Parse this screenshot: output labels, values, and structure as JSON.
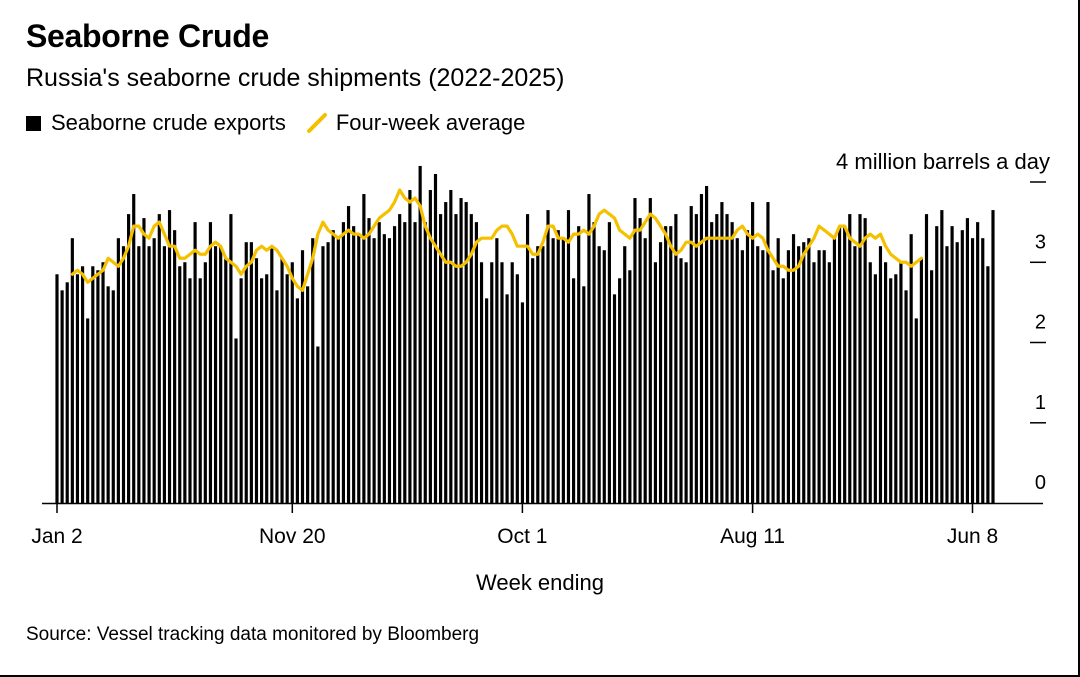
{
  "title": "Seaborne Crude",
  "subtitle": "Russia's seaborne crude shipments (2022-2025)",
  "legend": {
    "bars_label": "Seaborne crude exports",
    "line_label": "Four-week average"
  },
  "source": "Source: Vessel tracking data monitored by Bloomberg",
  "colors": {
    "bars": "#000000",
    "line": "#f5c000",
    "axis": "#000000"
  },
  "chart_data": {
    "type": "bar",
    "title": "Seaborne Crude",
    "subtitle": "Russia's seaborne crude shipments (2022-2025)",
    "xlabel": "Week ending",
    "ylabel": "4 million barrels a day",
    "ylim": [
      0,
      4
    ],
    "yticks": [
      0,
      1,
      2,
      3
    ],
    "xtick_labels": [
      {
        "label": "Jan 2",
        "index": 0
      },
      {
        "label": "Nov 20",
        "index": 46
      },
      {
        "label": "Oct 1",
        "index": 91
      },
      {
        "label": "Aug 11",
        "index": 136
      },
      {
        "label": "Jun 8",
        "index": 179
      }
    ],
    "legend_position": "top-left",
    "series": [
      {
        "name": "Seaborne crude exports",
        "type": "bar",
        "values": [
          2.85,
          2.65,
          2.75,
          3.3,
          2.85,
          2.95,
          2.3,
          2.95,
          2.9,
          3.0,
          2.7,
          2.65,
          3.3,
          3.2,
          3.6,
          3.85,
          3.2,
          3.55,
          3.2,
          3.3,
          3.6,
          3.2,
          3.65,
          3.4,
          2.95,
          3.0,
          2.8,
          3.5,
          2.8,
          3.0,
          3.5,
          3.2,
          3.2,
          3.05,
          3.6,
          2.05,
          2.8,
          3.25,
          3.25,
          3.05,
          2.8,
          2.85,
          3.2,
          2.65,
          3.05,
          2.85,
          3.0,
          2.55,
          3.15,
          2.7,
          3.3,
          1.95,
          3.2,
          3.25,
          3.4,
          3.3,
          3.5,
          3.7,
          3.45,
          3.35,
          3.85,
          3.55,
          3.3,
          3.5,
          3.35,
          3.3,
          3.45,
          3.6,
          3.5,
          3.9,
          3.5,
          4.2,
          3.5,
          3.9,
          4.1,
          3.6,
          3.75,
          3.9,
          3.6,
          3.8,
          3.75,
          3.6,
          3.5,
          3.0,
          2.55,
          3.0,
          3.3,
          3.0,
          2.6,
          3.0,
          2.85,
          2.5,
          3.6,
          3.05,
          3.2,
          3.2,
          3.65,
          3.3,
          3.4,
          3.3,
          3.65,
          2.8,
          3.45,
          2.7,
          3.85,
          3.5,
          3.2,
          3.15,
          3.5,
          2.6,
          2.8,
          3.2,
          2.9,
          3.8,
          3.55,
          3.3,
          3.8,
          3.0,
          3.25,
          3.45,
          3.45,
          3.6,
          3.05,
          3.0,
          3.7,
          3.6,
          3.85,
          3.95,
          3.5,
          3.6,
          3.75,
          3.6,
          3.5,
          3.3,
          3.15,
          3.4,
          3.75,
          3.2,
          3.15,
          3.75,
          2.9,
          3.3,
          2.8,
          3.15,
          3.35,
          3.2,
          3.25,
          3.3,
          3.0,
          3.15,
          3.15,
          3.0,
          3.3,
          3.45,
          3.45,
          3.6,
          3.2,
          3.6,
          3.55,
          3.0,
          2.85,
          3.2,
          3.0,
          2.8,
          2.85,
          3.0,
          2.65,
          3.35,
          2.3,
          3.05,
          3.6,
          2.9,
          3.45,
          3.65,
          3.2,
          3.45,
          3.25,
          3.4,
          3.55,
          3.3,
          3.5,
          3.3,
          2.95,
          3.65
        ]
      },
      {
        "name": "Four-week average",
        "type": "line",
        "start_index": 3,
        "values": [
          2.85,
          2.9,
          2.85,
          2.75,
          2.8,
          2.85,
          2.9,
          3.05,
          3.0,
          2.95,
          3.05,
          3.2,
          3.45,
          3.45,
          3.35,
          3.3,
          3.45,
          3.5,
          3.35,
          3.2,
          3.2,
          3.05,
          3.05,
          3.1,
          3.15,
          3.1,
          3.1,
          3.2,
          3.25,
          3.2,
          3.05,
          3.0,
          2.95,
          2.85,
          2.95,
          3.0,
          3.15,
          3.2,
          3.15,
          3.2,
          3.15,
          3.05,
          2.95,
          2.8,
          2.7,
          2.65,
          2.85,
          3.05,
          3.35,
          3.5,
          3.4,
          3.35,
          3.3,
          3.35,
          3.4,
          3.35,
          3.35,
          3.3,
          3.35,
          3.45,
          3.55,
          3.6,
          3.65,
          3.75,
          3.9,
          3.8,
          3.75,
          3.8,
          3.7,
          3.45,
          3.3,
          3.2,
          3.1,
          3.0,
          3.0,
          2.95,
          2.95,
          3.0,
          3.1,
          3.25,
          3.3,
          3.3,
          3.3,
          3.4,
          3.45,
          3.45,
          3.35,
          3.2,
          3.2,
          3.2,
          3.1,
          3.1,
          3.25,
          3.45,
          3.45,
          3.3,
          3.3,
          3.25,
          3.35,
          3.35,
          3.4,
          3.35,
          3.45,
          3.6,
          3.65,
          3.6,
          3.55,
          3.4,
          3.35,
          3.3,
          3.4,
          3.4,
          3.5,
          3.6,
          3.55,
          3.45,
          3.35,
          3.2,
          3.1,
          3.15,
          3.25,
          3.25,
          3.2,
          3.25,
          3.3,
          3.3,
          3.3,
          3.3,
          3.3,
          3.3,
          3.4,
          3.45,
          3.35,
          3.3,
          3.35,
          3.3,
          3.15,
          3.05,
          2.95,
          2.95,
          2.9,
          2.9,
          2.95,
          3.1,
          3.2,
          3.3,
          3.45,
          3.4,
          3.35,
          3.3,
          3.45,
          3.45,
          3.3,
          3.25,
          3.2,
          3.3,
          3.35,
          3.3,
          3.35,
          3.2,
          3.1,
          3.05,
          3.0,
          3.0,
          2.95,
          3.0,
          3.05
        ]
      }
    ]
  }
}
